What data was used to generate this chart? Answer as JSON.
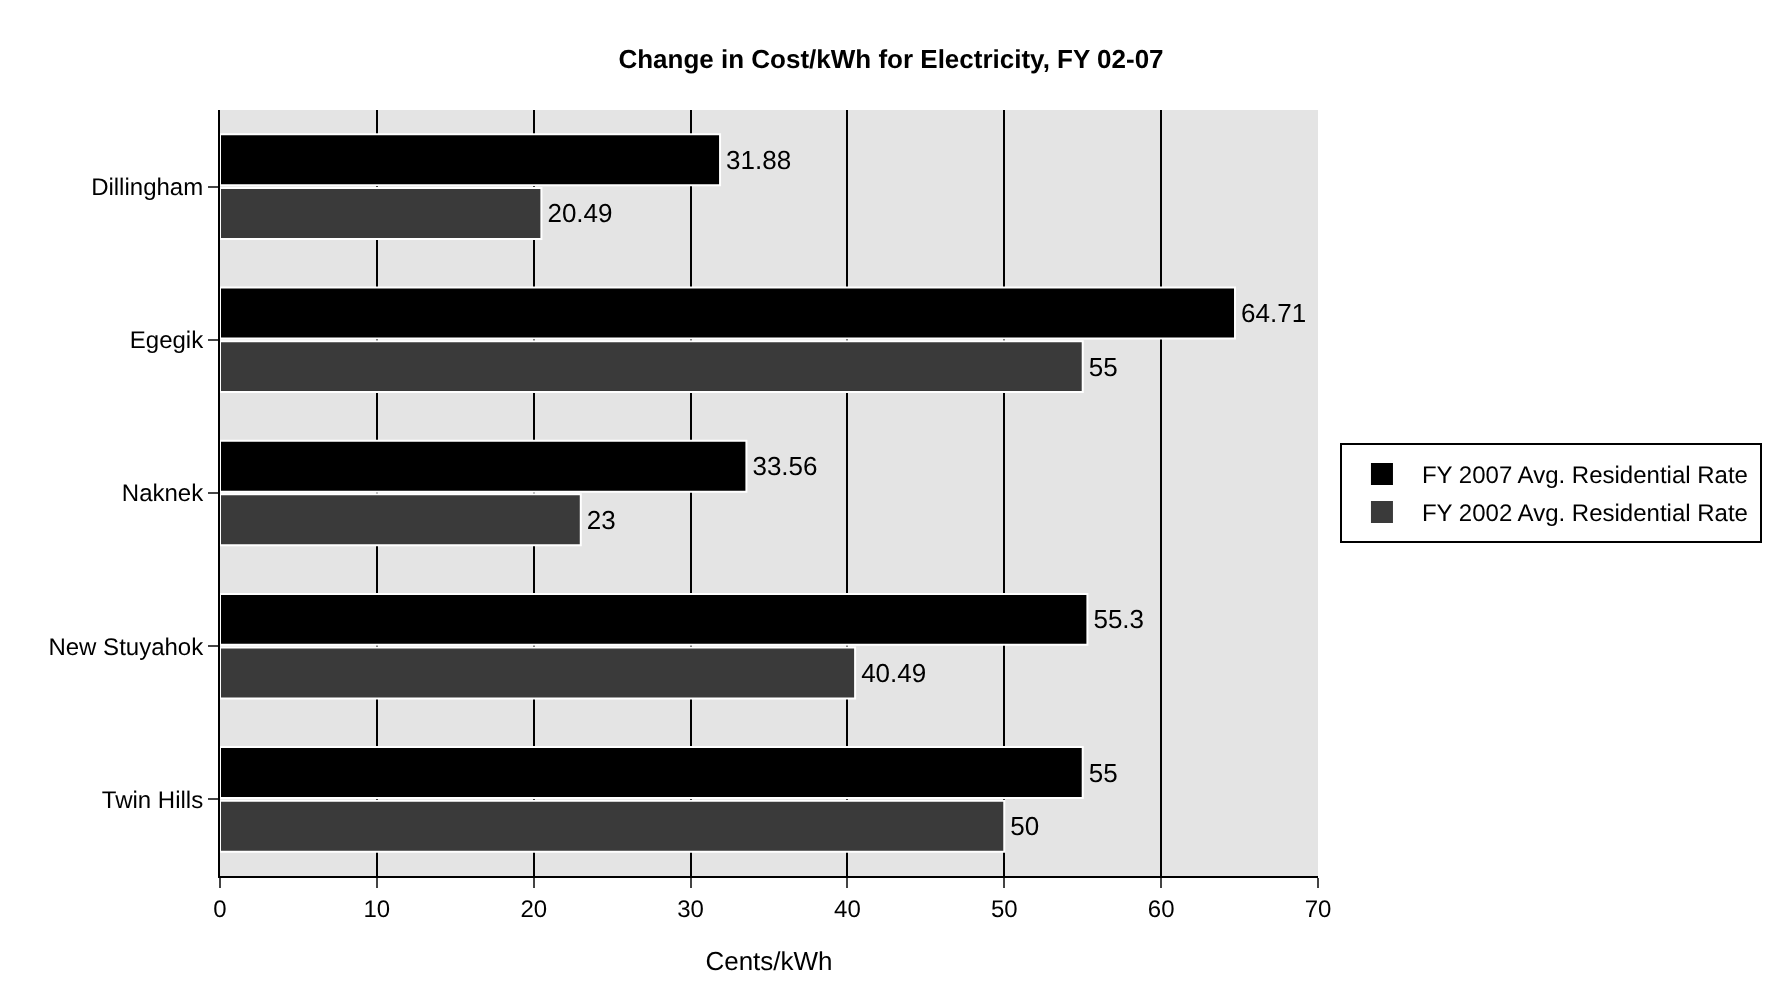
{
  "chart_data": {
    "type": "bar",
    "orientation": "horizontal",
    "title": "Change in Cost/kWh for Electricity, FY 02-07",
    "xlabel": "Cents/kWh",
    "categories": [
      "Dillingham",
      "Egegik",
      "Naknek",
      "New Stuyahok",
      "Twin Hills"
    ],
    "series": [
      {
        "name": "FY 2007 Avg. Residential Rate",
        "color": "#000000",
        "values": [
          31.88,
          64.71,
          33.56,
          55.3,
          55
        ]
      },
      {
        "name": "FY 2002 Avg. Residential Rate",
        "color": "#3a3a3a",
        "values": [
          20.49,
          55,
          23,
          40.49,
          50
        ]
      }
    ],
    "xlim": [
      0,
      70
    ],
    "xticks": [
      0,
      10,
      20,
      30,
      40,
      50,
      60,
      70
    ],
    "grid": "x",
    "legend": "right",
    "data_labels": true
  }
}
